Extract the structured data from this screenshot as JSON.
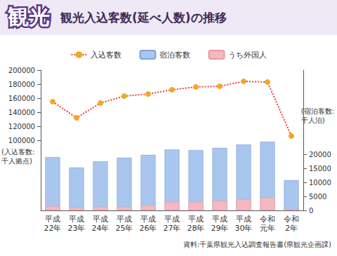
{
  "chart_data": {
    "type": "bar",
    "title": "観光",
    "subtitle": "観光入込客数(延べ人数)の推移",
    "source": "資料:千葉県観光入込調査報告書(県観光企画課)",
    "ylabel": "(入込客数:千人拠点)",
    "y2label": "(宿泊客数:千人泊)",
    "categories": [
      "平成22年",
      "平成23年",
      "平成24年",
      "平成25年",
      "平成26年",
      "平成27年",
      "平成28年",
      "平成29年",
      "平成30年",
      "令和元年",
      "令和2年"
    ],
    "series": [
      {
        "name": "入込客数",
        "type": "line",
        "color": "#e8413a",
        "marker": "circle",
        "line_style": "dotted",
        "values": [
          155000,
          132000,
          153000,
          163000,
          166000,
          172000,
          176000,
          177000,
          184000,
          183000,
          106000
        ]
      },
      {
        "name": "宿泊客数",
        "type": "bar",
        "axis": "y2",
        "color": "#a8c6ee",
        "values": [
          19000,
          15300,
          17500,
          18800,
          19800,
          21700,
          21500,
          22300,
          23500,
          24500,
          10800
        ]
      },
      {
        "name": "うち外国人",
        "type": "bar",
        "axis": "y2",
        "color": "#f4b8bf",
        "values": [
          1500,
          1000,
          1300,
          1300,
          1800,
          3000,
          3000,
          3500,
          4000,
          4500,
          500
        ]
      }
    ],
    "ylim": [
      0,
      200000
    ],
    "yticks": [
      100000,
      120000,
      140000,
      160000,
      180000,
      200000
    ],
    "y2lim": [
      0,
      50000
    ],
    "y2ticks": [
      0,
      5000,
      10000,
      15000,
      20000
    ],
    "stacked": false,
    "grid": false,
    "legend": "top"
  }
}
